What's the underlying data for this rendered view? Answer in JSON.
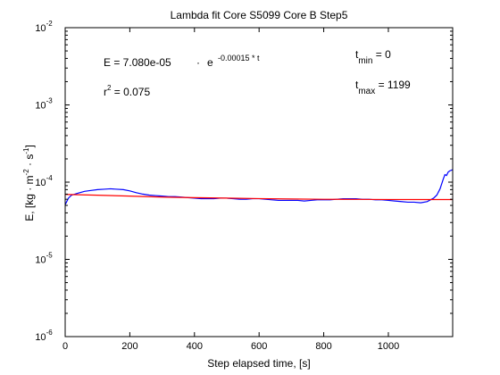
{
  "chart_data": {
    "type": "line",
    "title": "Lambda fit  Core S5099 Core B  Step5",
    "xlabel": "Step elapsed time, [s]",
    "ylabel_parts": {
      "p1": "E, [kg · m",
      "p1_sup": "-2",
      "p2": " · s",
      "p2_sup": "-1",
      "p3": "]"
    },
    "xlim": [
      0,
      1199
    ],
    "ylim": [
      1e-06,
      0.01
    ],
    "yscale": "log",
    "grid": false,
    "x_ticks": [
      0,
      200,
      400,
      600,
      800,
      1000
    ],
    "x_tick_labels": [
      "0",
      "200",
      "400",
      "600",
      "800",
      "1000"
    ],
    "y_ticks": [
      1e-06,
      1e-05,
      0.0001,
      0.001,
      0.01
    ],
    "y_tick_labels": [
      {
        "base": "10",
        "exp": "-6"
      },
      {
        "base": "10",
        "exp": "-5"
      },
      {
        "base": "10",
        "exp": "-4"
      },
      {
        "base": "10",
        "exp": "-3"
      },
      {
        "base": "10",
        "exp": "-2"
      }
    ],
    "annotations": {
      "equation": {
        "lhs": "E = 7.080e-05",
        "dot": "·",
        "base": "e",
        "exp": "-0.00015 * t"
      },
      "r2": {
        "prefix": "r",
        "sup": "2",
        "rest": " = 0.075"
      },
      "tmin": {
        "t": "t",
        "sub": "min",
        "rest": " = 0"
      },
      "tmax": {
        "t": "t",
        "sub": "max",
        "rest": " = 1199"
      }
    },
    "series": [
      {
        "color": "#0000ff",
        "x": [
          0,
          10,
          20,
          40,
          60,
          80,
          100,
          120,
          140,
          160,
          180,
          200,
          220,
          240,
          260,
          280,
          300,
          320,
          340,
          360,
          380,
          400,
          420,
          440,
          460,
          480,
          500,
          520,
          540,
          560,
          580,
          600,
          620,
          640,
          660,
          680,
          700,
          720,
          740,
          760,
          780,
          800,
          820,
          840,
          860,
          880,
          900,
          920,
          940,
          960,
          980,
          1000,
          1020,
          1040,
          1060,
          1080,
          1100,
          1120,
          1140,
          1150,
          1160,
          1170,
          1175,
          1180,
          1185,
          1190,
          1199
        ],
        "y": [
          5.1e-05,
          6.2e-05,
          6.8e-05,
          7.2e-05,
          7.6e-05,
          7.8e-05,
          8e-05,
          8.1e-05,
          8.2e-05,
          8.1e-05,
          8e-05,
          7.7e-05,
          7.3e-05,
          7e-05,
          6.8e-05,
          6.7e-05,
          6.6e-05,
          6.5e-05,
          6.5e-05,
          6.4e-05,
          6.3e-05,
          6.2e-05,
          6.1e-05,
          6.1e-05,
          6.1e-05,
          6.2e-05,
          6.2e-05,
          6.1e-05,
          6e-05,
          6e-05,
          6.1e-05,
          6.1e-05,
          6e-05,
          5.9e-05,
          5.8e-05,
          5.8e-05,
          5.8e-05,
          5.8e-05,
          5.7e-05,
          5.8e-05,
          5.9e-05,
          5.9e-05,
          5.9e-05,
          6e-05,
          6.1e-05,
          6.1e-05,
          6.1e-05,
          6e-05,
          6e-05,
          5.9e-05,
          5.9e-05,
          5.8e-05,
          5.7e-05,
          5.6e-05,
          5.5e-05,
          5.5e-05,
          5.4e-05,
          5.6e-05,
          6.2e-05,
          6.8e-05,
          8.2e-05,
          0.00011,
          0.000125,
          0.000122,
          0.000135,
          0.00014,
          0.000145
        ]
      },
      {
        "color": "#ff0000",
        "x": [
          0,
          100,
          200,
          300,
          400,
          500,
          600,
          700,
          800,
          900,
          1000,
          1100,
          1199
        ],
        "y": [
          6.93e-05,
          6.78e-05,
          6.6e-05,
          6.4e-05,
          6.3e-05,
          6.21e-05,
          6.12e-05,
          6.05e-05,
          6e-05,
          5.98e-05,
          5.96e-05,
          5.95e-05,
          5.95e-05
        ]
      }
    ]
  }
}
